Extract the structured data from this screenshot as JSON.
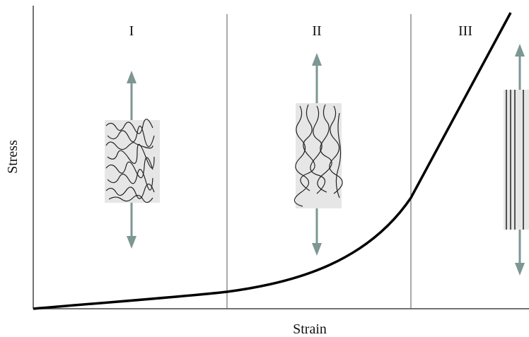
{
  "axes": {
    "y_label": "Stress",
    "x_label": "Strain"
  },
  "regions": [
    {
      "label": "I"
    },
    {
      "label": "II"
    },
    {
      "label": "III"
    }
  ]
}
